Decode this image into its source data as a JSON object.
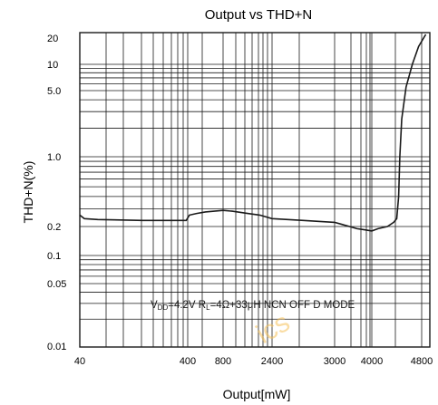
{
  "chart_data": {
    "type": "line",
    "title": "Output vs THD+N",
    "xlabel": "Output[mW]",
    "ylabel": "THD+N(%)",
    "x_tick_labels": [
      "40",
      "400",
      "800",
      "2400",
      "3000",
      "4000",
      "4800"
    ],
    "y_tick_labels": [
      "20",
      "10",
      "5.0",
      "1.0",
      "0.2",
      "0.1",
      "0.05",
      "0.01"
    ],
    "ylim": [
      0.01,
      20
    ],
    "yscale": "log",
    "xscale": "log-style non-uniform (as printed)",
    "grid": true,
    "annotation": {
      "sub_vdd": "DD",
      "text_vdd": "=4.2V R",
      "sub_rl": "L",
      "text_rest": "=4Ω+33μH NCN OFF D MODE"
    },
    "watermark": "ics",
    "series": [
      {
        "color": "#1a1a1a",
        "x": [
          40,
          55,
          100,
          250,
          395,
          420,
          500,
          600,
          800,
          1100,
          1600,
          2000,
          2400,
          2700,
          3000,
          3200,
          3400,
          3600,
          3800,
          4000,
          4100,
          4250,
          4350,
          4400,
          4430,
          4450,
          4480,
          4550,
          4650,
          4750,
          4900
        ],
        "y": [
          0.26,
          0.24,
          0.235,
          0.23,
          0.23,
          0.26,
          0.27,
          0.28,
          0.29,
          0.285,
          0.27,
          0.26,
          0.24,
          0.23,
          0.22,
          0.21,
          0.2,
          0.19,
          0.185,
          0.18,
          0.19,
          0.2,
          0.22,
          0.24,
          0.4,
          1.0,
          2.5,
          5.5,
          10,
          16,
          22
        ]
      }
    ]
  }
}
